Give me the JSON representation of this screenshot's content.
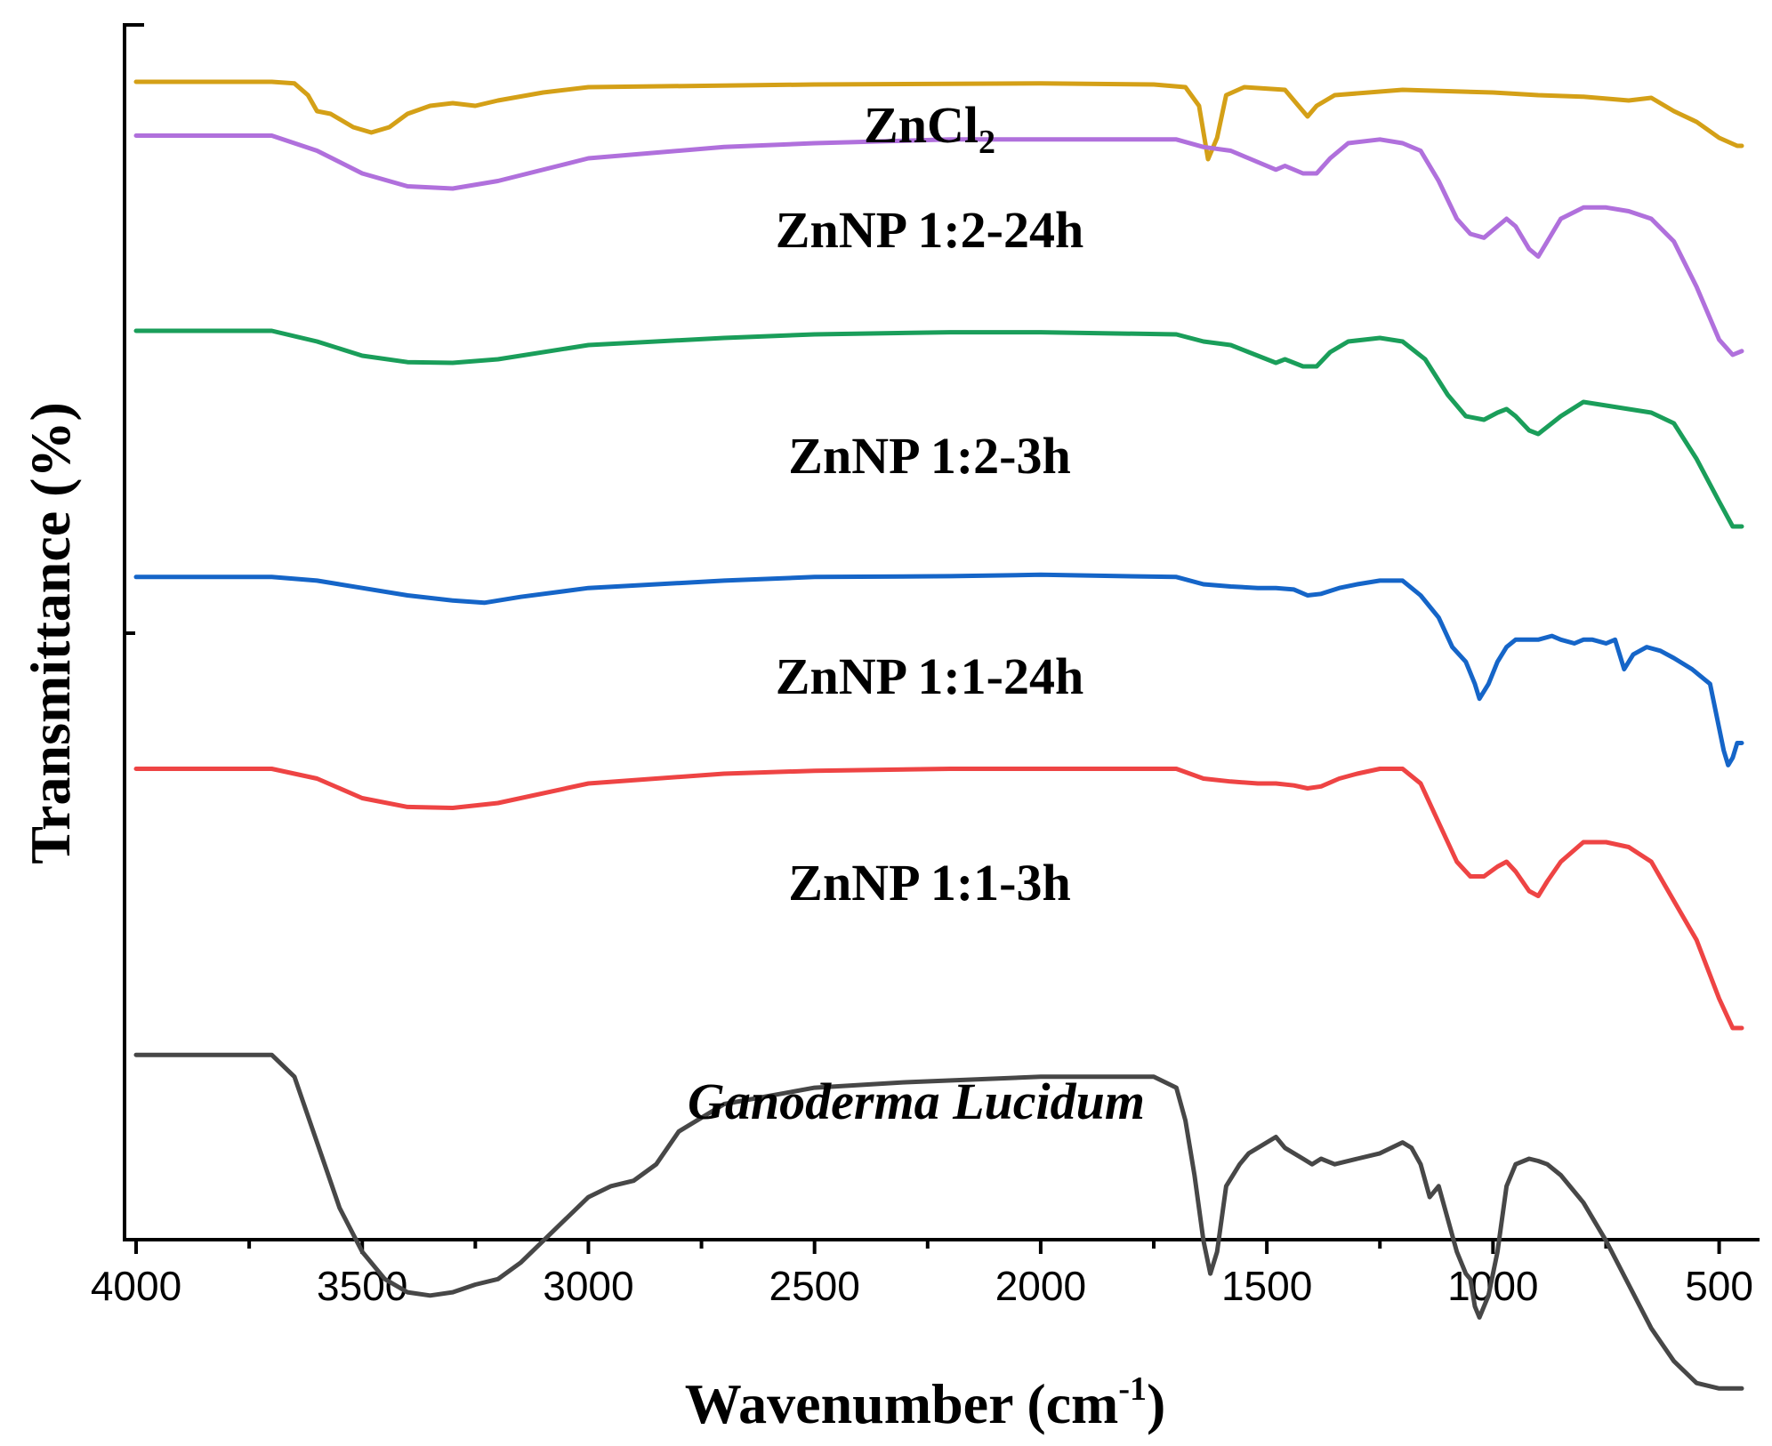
{
  "chart_data": {
    "type": "line",
    "title": "",
    "xlabel": "Wavenumber (cm",
    "xlabel_sup": "-1",
    "xlabel_close": ")",
    "ylabel": "Transmittance (%)",
    "xlim": [
      4000,
      450
    ],
    "x_reversed": true,
    "x_ticks": [
      {
        "value": 4000,
        "label": "4000"
      },
      {
        "value": 3500,
        "label": "3500"
      },
      {
        "value": 3000,
        "label": "3000"
      },
      {
        "value": 2500,
        "label": "2500"
      },
      {
        "value": 2000,
        "label": "2000"
      },
      {
        "value": 1500,
        "label": "1500"
      },
      {
        "value": 1000,
        "label": "1000"
      },
      {
        "value": 500,
        "label": "500"
      }
    ],
    "y_ticks_labeled": false,
    "grid": false,
    "legend": "inline labels above each trace",
    "series": [
      {
        "name": "ZnCl",
        "name_sub": "2",
        "color": "#D4A017",
        "italic": false,
        "points": [
          [
            4000,
            98.5
          ],
          [
            3700,
            98.5
          ],
          [
            3650,
            98.2
          ],
          [
            3620,
            96
          ],
          [
            3600,
            93
          ],
          [
            3570,
            92.5
          ],
          [
            3520,
            90
          ],
          [
            3480,
            89
          ],
          [
            3440,
            90
          ],
          [
            3400,
            92.5
          ],
          [
            3350,
            94
          ],
          [
            3300,
            94.5
          ],
          [
            3250,
            94
          ],
          [
            3200,
            95
          ],
          [
            3100,
            96.5
          ],
          [
            3000,
            97.5
          ],
          [
            2500,
            98
          ],
          [
            2000,
            98.2
          ],
          [
            1750,
            98
          ],
          [
            1680,
            97.5
          ],
          [
            1650,
            94
          ],
          [
            1630,
            84
          ],
          [
            1610,
            88
          ],
          [
            1590,
            96
          ],
          [
            1550,
            97.5
          ],
          [
            1460,
            97
          ],
          [
            1430,
            94
          ],
          [
            1410,
            92
          ],
          [
            1390,
            94
          ],
          [
            1350,
            96
          ],
          [
            1200,
            97
          ],
          [
            1000,
            96.5
          ],
          [
            900,
            96
          ],
          [
            800,
            95.7
          ],
          [
            700,
            95
          ],
          [
            650,
            95.5
          ],
          [
            600,
            93
          ],
          [
            550,
            91
          ],
          [
            500,
            88
          ],
          [
            460,
            86.5
          ],
          [
            450,
            86.5
          ]
        ]
      },
      {
        "name": "ZnNP 1:2-24h",
        "color": "#B070DC",
        "italic": false,
        "points": [
          [
            4000,
            97
          ],
          [
            3700,
            97
          ],
          [
            3600,
            95
          ],
          [
            3500,
            92
          ],
          [
            3400,
            90.3
          ],
          [
            3300,
            90
          ],
          [
            3200,
            91
          ],
          [
            3000,
            94
          ],
          [
            2700,
            95.5
          ],
          [
            2500,
            96
          ],
          [
            2200,
            96.5
          ],
          [
            2000,
            96.5
          ],
          [
            1700,
            96.5
          ],
          [
            1640,
            95.5
          ],
          [
            1580,
            95
          ],
          [
            1540,
            94
          ],
          [
            1480,
            92.5
          ],
          [
            1460,
            93
          ],
          [
            1420,
            92
          ],
          [
            1390,
            92
          ],
          [
            1360,
            94
          ],
          [
            1320,
            96
          ],
          [
            1250,
            96.5
          ],
          [
            1200,
            96
          ],
          [
            1160,
            95
          ],
          [
            1120,
            91
          ],
          [
            1080,
            86
          ],
          [
            1050,
            84
          ],
          [
            1020,
            83.5
          ],
          [
            990,
            85
          ],
          [
            970,
            86
          ],
          [
            950,
            85
          ],
          [
            920,
            82
          ],
          [
            900,
            81
          ],
          [
            880,
            83
          ],
          [
            850,
            86
          ],
          [
            800,
            87.5
          ],
          [
            750,
            87.5
          ],
          [
            700,
            87
          ],
          [
            650,
            86
          ],
          [
            600,
            83
          ],
          [
            550,
            77
          ],
          [
            500,
            70
          ],
          [
            470,
            68
          ],
          [
            450,
            68.5
          ]
        ]
      },
      {
        "name": "ZnNP 1:2-3h",
        "color": "#1A9E5A",
        "italic": false,
        "points": [
          [
            4000,
            97
          ],
          [
            3700,
            97
          ],
          [
            3600,
            95.5
          ],
          [
            3500,
            93.5
          ],
          [
            3400,
            92.6
          ],
          [
            3300,
            92.5
          ],
          [
            3200,
            93
          ],
          [
            3000,
            95
          ],
          [
            2700,
            96
          ],
          [
            2500,
            96.5
          ],
          [
            2200,
            96.8
          ],
          [
            2000,
            96.8
          ],
          [
            1700,
            96.5
          ],
          [
            1640,
            95.5
          ],
          [
            1580,
            95
          ],
          [
            1540,
            94
          ],
          [
            1480,
            92.5
          ],
          [
            1460,
            93
          ],
          [
            1420,
            92
          ],
          [
            1390,
            92
          ],
          [
            1360,
            94
          ],
          [
            1320,
            95.5
          ],
          [
            1250,
            96
          ],
          [
            1200,
            95.5
          ],
          [
            1150,
            93
          ],
          [
            1100,
            88
          ],
          [
            1060,
            85
          ],
          [
            1020,
            84.5
          ],
          [
            990,
            85.5
          ],
          [
            970,
            86
          ],
          [
            950,
            85
          ],
          [
            920,
            83
          ],
          [
            900,
            82.5
          ],
          [
            880,
            83.5
          ],
          [
            850,
            85
          ],
          [
            800,
            87
          ],
          [
            750,
            86.5
          ],
          [
            700,
            86
          ],
          [
            650,
            85.5
          ],
          [
            600,
            84
          ],
          [
            550,
            79
          ],
          [
            500,
            73
          ],
          [
            470,
            69.5
          ],
          [
            450,
            69.5
          ]
        ]
      },
      {
        "name": "ZnNP 1:1-24h",
        "color": "#1565C8",
        "italic": false,
        "points": [
          [
            4000,
            97.5
          ],
          [
            3700,
            97.5
          ],
          [
            3600,
            97
          ],
          [
            3500,
            96
          ],
          [
            3400,
            95
          ],
          [
            3300,
            94.3
          ],
          [
            3230,
            94
          ],
          [
            3150,
            94.8
          ],
          [
            3000,
            96
          ],
          [
            2700,
            97
          ],
          [
            2500,
            97.5
          ],
          [
            2200,
            97.6
          ],
          [
            2000,
            97.8
          ],
          [
            1700,
            97.5
          ],
          [
            1640,
            96.5
          ],
          [
            1580,
            96.2
          ],
          [
            1520,
            96
          ],
          [
            1480,
            96
          ],
          [
            1440,
            95.8
          ],
          [
            1410,
            95
          ],
          [
            1380,
            95.2
          ],
          [
            1340,
            96
          ],
          [
            1300,
            96.5
          ],
          [
            1250,
            97
          ],
          [
            1200,
            97
          ],
          [
            1160,
            95
          ],
          [
            1120,
            92
          ],
          [
            1090,
            88
          ],
          [
            1060,
            86
          ],
          [
            1040,
            83
          ],
          [
            1030,
            81
          ],
          [
            1010,
            83
          ],
          [
            990,
            86
          ],
          [
            970,
            88
          ],
          [
            950,
            89
          ],
          [
            900,
            89
          ],
          [
            870,
            89.5
          ],
          [
            850,
            89
          ],
          [
            820,
            88.5
          ],
          [
            800,
            89
          ],
          [
            780,
            89
          ],
          [
            750,
            88.5
          ],
          [
            730,
            89
          ],
          [
            720,
            87
          ],
          [
            710,
            85
          ],
          [
            690,
            87
          ],
          [
            660,
            88
          ],
          [
            630,
            87.5
          ],
          [
            600,
            86.5
          ],
          [
            560,
            85
          ],
          [
            520,
            83
          ],
          [
            500,
            77
          ],
          [
            490,
            74
          ],
          [
            480,
            72
          ],
          [
            470,
            73
          ],
          [
            460,
            75
          ],
          [
            450,
            75
          ]
        ]
      },
      {
        "name": "ZnNP 1:1-3h",
        "color": "#EE4444",
        "italic": false,
        "points": [
          [
            4000,
            97.5
          ],
          [
            3700,
            97.5
          ],
          [
            3600,
            96.5
          ],
          [
            3500,
            94.5
          ],
          [
            3400,
            93.6
          ],
          [
            3300,
            93.5
          ],
          [
            3200,
            94
          ],
          [
            3000,
            96
          ],
          [
            2700,
            97
          ],
          [
            2500,
            97.3
          ],
          [
            2200,
            97.5
          ],
          [
            2000,
            97.5
          ],
          [
            1700,
            97.5
          ],
          [
            1640,
            96.5
          ],
          [
            1580,
            96.2
          ],
          [
            1520,
            96
          ],
          [
            1480,
            96
          ],
          [
            1440,
            95.8
          ],
          [
            1410,
            95.5
          ],
          [
            1380,
            95.7
          ],
          [
            1340,
            96.5
          ],
          [
            1300,
            97
          ],
          [
            1250,
            97.5
          ],
          [
            1200,
            97.5
          ],
          [
            1160,
            96
          ],
          [
            1120,
            92
          ],
          [
            1080,
            88
          ],
          [
            1050,
            86.5
          ],
          [
            1020,
            86.5
          ],
          [
            990,
            87.5
          ],
          [
            970,
            88
          ],
          [
            950,
            87
          ],
          [
            920,
            85
          ],
          [
            900,
            84.5
          ],
          [
            880,
            86
          ],
          [
            850,
            88
          ],
          [
            800,
            90
          ],
          [
            750,
            90
          ],
          [
            700,
            89.5
          ],
          [
            650,
            88
          ],
          [
            600,
            84
          ],
          [
            550,
            80
          ],
          [
            500,
            74
          ],
          [
            470,
            71
          ],
          [
            450,
            71
          ]
        ]
      },
      {
        "name": "Ganoderma Lucidum",
        "color": "#474747",
        "italic": true,
        "points": [
          [
            4000,
            96
          ],
          [
            3700,
            96
          ],
          [
            3650,
            94
          ],
          [
            3600,
            88
          ],
          [
            3550,
            82
          ],
          [
            3500,
            78
          ],
          [
            3450,
            75.5
          ],
          [
            3400,
            74.3
          ],
          [
            3350,
            74
          ],
          [
            3300,
            74.3
          ],
          [
            3250,
            75
          ],
          [
            3200,
            75.5
          ],
          [
            3150,
            77
          ],
          [
            3100,
            79
          ],
          [
            3050,
            81
          ],
          [
            3000,
            83
          ],
          [
            2950,
            84
          ],
          [
            2900,
            84.5
          ],
          [
            2850,
            86
          ],
          [
            2800,
            89
          ],
          [
            2700,
            91.5
          ],
          [
            2500,
            93
          ],
          [
            2300,
            93.5
          ],
          [
            2000,
            94
          ],
          [
            1800,
            94
          ],
          [
            1750,
            94
          ],
          [
            1700,
            93
          ],
          [
            1680,
            90
          ],
          [
            1660,
            85
          ],
          [
            1640,
            79
          ],
          [
            1625,
            76
          ],
          [
            1610,
            78
          ],
          [
            1590,
            84
          ],
          [
            1560,
            86
          ],
          [
            1540,
            87
          ],
          [
            1500,
            88
          ],
          [
            1480,
            88.5
          ],
          [
            1460,
            87.5
          ],
          [
            1420,
            86.5
          ],
          [
            1400,
            86
          ],
          [
            1380,
            86.5
          ],
          [
            1350,
            86
          ],
          [
            1300,
            86.5
          ],
          [
            1250,
            87
          ],
          [
            1200,
            88
          ],
          [
            1180,
            87.5
          ],
          [
            1160,
            86
          ],
          [
            1140,
            83
          ],
          [
            1120,
            84
          ],
          [
            1100,
            81
          ],
          [
            1080,
            78
          ],
          [
            1060,
            76
          ],
          [
            1050,
            75.5
          ],
          [
            1040,
            73
          ],
          [
            1030,
            72
          ],
          [
            1010,
            74
          ],
          [
            990,
            78
          ],
          [
            970,
            84
          ],
          [
            950,
            86
          ],
          [
            920,
            86.5
          ],
          [
            900,
            86.3
          ],
          [
            880,
            86
          ],
          [
            850,
            85
          ],
          [
            800,
            82.5
          ],
          [
            750,
            79
          ],
          [
            700,
            75
          ],
          [
            650,
            71
          ],
          [
            600,
            68
          ],
          [
            550,
            66
          ],
          [
            500,
            65.5
          ],
          [
            470,
            65.5
          ],
          [
            450,
            65.5
          ]
        ]
      }
    ]
  }
}
